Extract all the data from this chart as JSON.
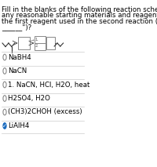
{
  "title_lines": [
    "Fill in the blanks of the following reaction scheme using",
    "any reasonable starting materials and reagents. What is",
    "the first reagent used in the second reaction (i.e., \"1.",
    "______\")?",
    ""
  ],
  "options": [
    {
      "text": "NaBH4",
      "checked": false
    },
    {
      "text": "NaCN",
      "checked": false
    },
    {
      "text": "1. NaCN, HCl, H2O, heat",
      "checked": false
    },
    {
      "text": "H2SO4, H2O",
      "checked": false
    },
    {
      "text": "(CH3)2CHOH (excess)",
      "checked": false
    },
    {
      "text": "LiAlH4",
      "checked": true
    }
  ],
  "bg_color": "#ffffff",
  "text_color": "#000000",
  "check_color": "#1a6bbf",
  "title_fontsize": 6.2,
  "option_fontsize": 6.2
}
